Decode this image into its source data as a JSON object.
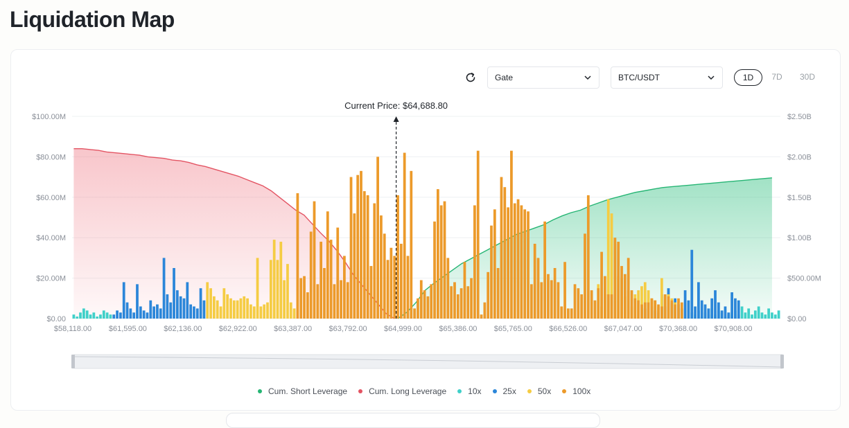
{
  "page": {
    "title": "Liquidation Map"
  },
  "controls": {
    "exchange": "Gate",
    "pair": "BTC/USDT",
    "ranges": [
      "1D",
      "7D",
      "30D"
    ],
    "active_range": "1D"
  },
  "icons": {
    "refresh": "refresh-icon",
    "dropdown": "chevron-down-icon"
  },
  "colors": {
    "short_line": "#26b574",
    "short_fill": "#2fbf7f",
    "long_line": "#e35463",
    "long_fill": "#f0808b",
    "x10": "#3fd0c9",
    "x25": "#2b86d9",
    "x50": "#f5cc43",
    "x100": "#ec9a2a"
  },
  "chart_data": {
    "type": "bar",
    "current_price_label": "Current Price: $64,688.80",
    "current_price_index": 96.5,
    "y_left_ticks": [
      "$0.00",
      "$20.00M",
      "$40.00M",
      "$60.00M",
      "$80.00M",
      "$100.00M"
    ],
    "y_right_ticks": [
      "$0.00",
      "$500.00M",
      "$1.00B",
      "$1.50B",
      "$2.00B",
      "$2.50B"
    ],
    "ylim_left": [
      0,
      100
    ],
    "ylim_right": [
      0,
      2.5
    ],
    "x_tick_labels": [
      "$58,118.00",
      "$61,595.00",
      "$62,136.00",
      "$62,922.00",
      "$63,387.00",
      "$63,792.00",
      "$64,999.00",
      "$65,386.00",
      "$65,765.00",
      "$66,526.00",
      "$67,047.00",
      "$70,368.00",
      "$70,908.00"
    ],
    "grid": true,
    "legend_position": "bottom",
    "series": [
      {
        "name": "10x",
        "kind": "bar",
        "values": [
          2,
          1,
          3,
          5,
          4,
          2,
          3,
          1,
          2,
          4,
          3,
          2,
          0,
          0,
          0,
          0,
          0,
          0,
          0,
          0,
          0,
          0,
          0,
          0,
          0,
          0,
          0,
          0,
          0,
          0,
          0,
          0,
          0,
          0,
          0,
          0,
          0,
          0,
          0,
          0,
          0,
          0,
          0,
          0,
          0,
          0,
          0,
          0,
          0,
          0,
          0,
          0,
          0,
          0,
          0,
          0,
          0,
          0,
          0,
          0,
          0,
          0,
          0,
          0,
          0,
          0,
          0,
          0,
          0,
          0,
          0,
          0,
          0,
          0,
          0,
          0,
          0,
          0,
          0,
          0,
          0,
          0,
          0,
          0,
          0,
          0,
          0,
          0,
          0,
          0,
          0,
          0,
          0,
          0,
          0,
          0,
          0,
          0,
          0,
          0,
          0,
          0,
          0,
          0,
          0,
          0,
          0,
          0,
          0,
          0,
          0,
          0,
          0,
          0,
          0,
          0,
          0,
          0,
          0,
          0,
          0,
          0,
          0,
          0,
          0,
          0,
          0,
          0,
          0,
          0,
          0,
          0,
          0,
          0,
          0,
          0,
          0,
          0,
          0,
          0,
          0,
          0,
          0,
          0,
          0,
          0,
          0,
          0,
          0,
          0,
          0,
          0,
          0,
          0,
          0,
          0,
          0,
          0,
          0,
          0,
          0,
          0,
          0,
          0,
          0,
          0,
          0,
          0,
          0,
          0,
          0,
          0,
          0,
          0,
          0,
          0,
          0,
          0,
          0,
          0,
          0,
          0,
          0,
          0,
          0,
          3,
          2,
          4,
          1,
          3,
          2,
          5,
          2,
          4,
          3,
          1,
          2,
          3,
          4,
          2,
          6,
          3,
          5,
          2,
          4,
          6,
          3,
          2,
          5,
          3,
          2,
          4
        ]
      },
      {
        "name": "25x",
        "kind": "bar",
        "values": [
          0,
          0,
          0,
          0,
          0,
          0,
          0,
          0,
          0,
          0,
          0,
          0,
          2,
          4,
          3,
          18,
          8,
          5,
          3,
          17,
          6,
          4,
          3,
          9,
          6,
          7,
          5,
          30,
          12,
          8,
          25,
          14,
          11,
          10,
          18,
          7,
          6,
          5,
          15,
          9,
          0,
          0,
          0,
          0,
          0,
          0,
          0,
          0,
          0,
          0,
          0,
          0,
          0,
          0,
          0,
          0,
          0,
          0,
          0,
          0,
          0,
          0,
          0,
          0,
          0,
          0,
          0,
          0,
          0,
          0,
          0,
          0,
          0,
          0,
          0,
          0,
          0,
          0,
          0,
          0,
          0,
          0,
          0,
          0,
          0,
          0,
          0,
          0,
          0,
          0,
          0,
          0,
          0,
          0,
          0,
          0,
          0,
          0,
          0,
          0,
          0,
          0,
          0,
          0,
          0,
          0,
          0,
          0,
          0,
          0,
          0,
          0,
          0,
          0,
          0,
          0,
          0,
          0,
          0,
          0,
          0,
          0,
          0,
          0,
          0,
          0,
          0,
          0,
          0,
          0,
          0,
          0,
          0,
          0,
          0,
          0,
          0,
          0,
          0,
          0,
          0,
          0,
          0,
          0,
          0,
          0,
          0,
          0,
          0,
          0,
          0,
          0,
          0,
          0,
          0,
          0,
          0,
          0,
          0,
          0,
          0,
          0,
          0,
          0,
          0,
          0,
          0,
          0,
          0,
          0,
          7,
          5,
          8,
          6,
          4,
          3,
          12,
          6,
          15,
          8,
          10,
          7,
          5,
          14,
          9,
          34,
          6,
          18,
          9,
          7,
          5,
          10,
          14,
          8,
          4,
          6,
          3,
          13,
          10,
          9,
          0,
          0,
          0,
          0,
          0,
          0,
          0,
          0,
          0,
          0,
          0,
          0,
          0,
          0,
          0,
          0,
          0,
          0,
          0,
          0,
          0,
          0,
          0,
          0,
          0,
          0,
          0
        ]
      },
      {
        "name": "50x",
        "kind": "bar",
        "values": [
          0,
          0,
          0,
          0,
          0,
          0,
          0,
          0,
          0,
          0,
          0,
          0,
          0,
          0,
          0,
          0,
          0,
          0,
          0,
          0,
          0,
          0,
          0,
          0,
          0,
          0,
          0,
          0,
          0,
          0,
          0,
          0,
          0,
          0,
          0,
          0,
          0,
          0,
          0,
          0,
          18,
          15,
          11,
          9,
          6,
          15,
          12,
          10,
          9,
          9,
          10,
          11,
          10,
          7,
          6,
          30,
          6,
          7,
          8,
          29,
          39,
          29,
          38,
          19,
          27,
          8,
          5,
          0,
          0,
          0,
          0,
          0,
          0,
          0,
          0,
          0,
          0,
          0,
          0,
          0,
          0,
          0,
          0,
          0,
          0,
          0,
          0,
          0,
          0,
          0,
          0,
          0,
          0,
          0,
          0,
          0,
          0,
          0,
          0,
          0,
          0,
          0,
          0,
          0,
          0,
          0,
          0,
          0,
          0,
          0,
          0,
          0,
          0,
          0,
          0,
          0,
          0,
          0,
          0,
          0,
          0,
          0,
          0,
          0,
          0,
          0,
          0,
          0,
          0,
          0,
          0,
          0,
          0,
          0,
          0,
          0,
          0,
          0,
          0,
          0,
          0,
          0,
          0,
          0,
          0,
          0,
          0,
          0,
          0,
          0,
          0,
          0,
          0,
          0,
          0,
          0,
          0,
          17,
          6,
          12,
          59,
          52,
          37,
          21,
          20,
          11,
          14,
          6,
          12,
          14,
          16,
          18,
          14,
          10,
          9,
          6,
          20,
          11,
          12,
          10,
          8,
          0,
          0,
          0,
          0,
          0,
          0,
          0,
          0,
          0,
          0,
          0,
          0,
          0,
          0,
          0,
          0,
          0,
          0,
          0,
          0,
          0,
          0,
          0,
          0,
          0,
          0,
          0,
          0,
          0,
          0,
          0,
          0,
          0,
          0,
          0,
          0,
          0,
          0,
          0,
          0,
          0,
          0,
          0,
          0,
          0,
          0,
          0,
          0,
          0,
          0,
          0,
          0,
          0,
          0,
          0,
          0,
          0,
          0
        ]
      },
      {
        "name": "100x",
        "kind": "bar",
        "values": [
          0,
          0,
          0,
          0,
          0,
          0,
          0,
          0,
          0,
          0,
          0,
          0,
          0,
          0,
          0,
          0,
          0,
          0,
          0,
          0,
          0,
          0,
          0,
          0,
          0,
          0,
          0,
          0,
          0,
          0,
          0,
          0,
          0,
          0,
          0,
          0,
          0,
          0,
          0,
          0,
          0,
          0,
          0,
          0,
          0,
          0,
          0,
          0,
          0,
          0,
          0,
          0,
          0,
          0,
          0,
          0,
          0,
          0,
          0,
          0,
          0,
          0,
          0,
          0,
          0,
          0,
          0,
          62,
          20,
          21,
          13,
          43,
          58,
          17,
          38,
          25,
          53,
          39,
          17,
          45,
          19,
          31,
          18,
          70,
          52,
          71,
          73,
          63,
          61,
          26,
          57,
          80,
          51,
          42,
          29,
          35,
          31,
          61,
          37,
          82,
          31,
          73,
          5,
          10,
          19,
          14,
          11,
          17,
          48,
          64,
          56,
          58,
          30,
          16,
          18,
          12,
          15,
          28,
          16,
          20,
          56,
          83,
          2,
          8,
          23,
          46,
          54,
          25,
          70,
          65,
          55,
          83,
          57,
          59,
          56,
          54,
          53,
          17,
          37,
          30,
          18,
          48,
          22,
          19,
          25,
          18,
          6,
          28,
          5,
          5,
          17,
          15,
          12,
          42,
          61,
          14,
          9,
          15,
          33,
          21,
          12,
          12,
          40,
          38,
          26,
          22,
          30,
          14,
          10,
          9,
          7,
          8,
          8,
          10,
          9,
          7,
          6,
          12,
          11,
          9,
          7,
          10,
          8,
          0,
          0,
          0,
          0,
          0,
          0,
          0,
          0,
          0,
          0,
          0,
          0,
          0,
          0,
          0,
          0,
          0,
          0,
          0,
          0,
          0,
          0,
          0,
          0,
          0,
          0,
          0,
          0,
          0,
          0,
          0,
          0,
          0,
          0,
          0,
          0,
          0,
          0,
          0,
          0,
          0,
          0,
          0,
          0,
          0,
          0,
          0,
          0,
          0,
          0,
          0,
          0,
          0,
          0,
          0,
          0,
          0
        ]
      },
      {
        "name": "Cum. Long Leverage",
        "kind": "area",
        "axis": "right",
        "range": [
          0,
          96
        ],
        "values": [
          2.1,
          2.1,
          2.09,
          2.08,
          2.06,
          2.05,
          2.04,
          2.03,
          2.02,
          2.0,
          1.99,
          1.98,
          1.96,
          1.95,
          1.93,
          1.9,
          1.88,
          1.85,
          1.82,
          1.79,
          1.76,
          1.72,
          1.68,
          1.64,
          1.58,
          1.5,
          1.42,
          1.34,
          1.28,
          1.17,
          1.06,
          0.96,
          0.84,
          0.7,
          0.54,
          0.42,
          0.3,
          0.18,
          0.06,
          0.0
        ]
      },
      {
        "name": "Cum. Short Leverage",
        "kind": "area",
        "axis": "right",
        "range": [
          97,
          209
        ],
        "values": [
          0.0,
          0.08,
          0.2,
          0.35,
          0.44,
          0.52,
          0.6,
          0.68,
          0.74,
          0.8,
          0.86,
          0.92,
          0.98,
          1.04,
          1.08,
          1.12,
          1.16,
          1.22,
          1.27,
          1.31,
          1.34,
          1.39,
          1.43,
          1.47,
          1.5,
          1.53,
          1.56,
          1.58,
          1.6,
          1.62,
          1.63,
          1.64,
          1.65,
          1.66,
          1.67,
          1.68,
          1.69,
          1.7,
          1.71,
          1.72,
          1.73,
          1.74
        ]
      }
    ]
  }
}
